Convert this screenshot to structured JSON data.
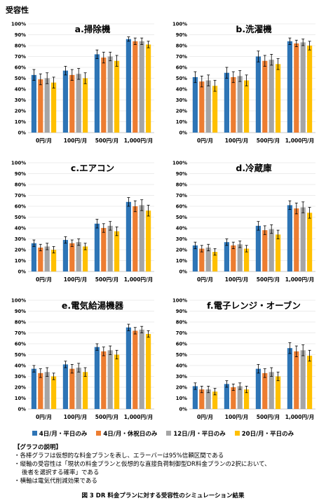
{
  "heading": "受容性",
  "colors": [
    "#2e75b6",
    "#ed7d31",
    "#a5a5a5",
    "#ffc000"
  ],
  "legend": [
    "4日/月・平日のみ",
    "4日/月・休祝日のみ",
    "12日/月・平日のみ",
    "20日/月・平日のみ"
  ],
  "notes": {
    "title": "【グラフの説明】",
    "line1": "・各棒グラフは仮想的な料金プランを表し、エラーバーは95%信頼区間である",
    "line2a": "・縦軸の受容性は「現状の料金プランと仮想的な直接負荷制御型DR料金プランの2択において、",
    "line2b": "後者を選択する確率」である",
    "line3": "・横軸は電気代削減効果である"
  },
  "caption": "図 3 DR 料金プランに対する受容性のシミュレーション結果",
  "chart_data": [
    {
      "type": "bar",
      "title": "a.掃除機",
      "categories": [
        "0円/月",
        "100円/月",
        "500円/月",
        "1,000円/月"
      ],
      "ylim": [
        0,
        100
      ],
      "yticks": [
        "0%",
        "10%",
        "20%",
        "30%",
        "40%",
        "50%",
        "60%",
        "70%",
        "80%",
        "90%",
        "100%"
      ],
      "series": [
        {
          "name": "4日/月・平日のみ",
          "values": [
            53,
            57,
            72,
            86
          ],
          "err": [
            5,
            4,
            4,
            2
          ]
        },
        {
          "name": "4日/月・休祝日のみ",
          "values": [
            49,
            53,
            69,
            84
          ],
          "err": [
            5,
            5,
            5,
            3
          ]
        },
        {
          "name": "12日/月・平日のみ",
          "values": [
            50,
            54,
            70,
            84
          ],
          "err": [
            5,
            5,
            4,
            3
          ]
        },
        {
          "name": "20日/月・平日のみ",
          "values": [
            46,
            50,
            66,
            81
          ],
          "err": [
            5,
            5,
            5,
            3
          ]
        }
      ]
    },
    {
      "type": "bar",
      "title": "b.洗濯機",
      "categories": [
        "0円/月",
        "100円/月",
        "500円/月",
        "1,000円/月"
      ],
      "ylim": [
        0,
        100
      ],
      "yticks": [
        "0%",
        "10%",
        "20%",
        "30%",
        "40%",
        "50%",
        "60%",
        "70%",
        "80%",
        "90%",
        "100%"
      ],
      "series": [
        {
          "name": "4日/月・平日のみ",
          "values": [
            51,
            55,
            70,
            84
          ],
          "err": [
            5,
            5,
            5,
            3
          ]
        },
        {
          "name": "4日/月・休祝日のみ",
          "values": [
            47,
            51,
            66,
            82
          ],
          "err": [
            5,
            5,
            5,
            3
          ]
        },
        {
          "name": "12日/月・平日のみ",
          "values": [
            48,
            52,
            67,
            83
          ],
          "err": [
            5,
            5,
            5,
            3
          ]
        },
        {
          "name": "20日/月・平日のみ",
          "values": [
            43,
            48,
            63,
            80
          ],
          "err": [
            5,
            5,
            5,
            4
          ]
        }
      ]
    },
    {
      "type": "bar",
      "title": "c.エアコン",
      "categories": [
        "0円/月",
        "100円/月",
        "500円/月",
        "1,000円/月"
      ],
      "ylim": [
        0,
        100
      ],
      "yticks": [
        "0%",
        "10%",
        "20%",
        "30%",
        "40%",
        "50%",
        "60%",
        "70%",
        "80%",
        "90%",
        "100%"
      ],
      "series": [
        {
          "name": "4日/月・平日のみ",
          "values": [
            26,
            29,
            44,
            64
          ],
          "err": [
            3,
            3,
            4,
            4
          ]
        },
        {
          "name": "4日/月・休祝日のみ",
          "values": [
            22,
            26,
            40,
            60
          ],
          "err": [
            3,
            3,
            4,
            5
          ]
        },
        {
          "name": "12日/月・平日のみ",
          "values": [
            23,
            27,
            42,
            61
          ],
          "err": [
            3,
            3,
            4,
            5
          ]
        },
        {
          "name": "20日/月・平日のみ",
          "values": [
            20,
            23,
            37,
            56
          ],
          "err": [
            3,
            3,
            4,
            5
          ]
        }
      ]
    },
    {
      "type": "bar",
      "title": "d.冷蔵庫",
      "categories": [
        "0円/月",
        "100円/月",
        "500円/月",
        "1,000円/月"
      ],
      "ylim": [
        0,
        100
      ],
      "yticks": [
        "0%",
        "10%",
        "20%",
        "30%",
        "40%",
        "50%",
        "60%",
        "70%",
        "80%",
        "90%",
        "100%"
      ],
      "series": [
        {
          "name": "4日/月・平日のみ",
          "values": [
            24,
            27,
            42,
            61
          ],
          "err": [
            3,
            3,
            4,
            4
          ]
        },
        {
          "name": "4日/月・休祝日のみ",
          "values": [
            21,
            24,
            38,
            58
          ],
          "err": [
            3,
            3,
            4,
            5
          ]
        },
        {
          "name": "12日/月・平日のみ",
          "values": [
            22,
            25,
            39,
            59
          ],
          "err": [
            3,
            3,
            4,
            5
          ]
        },
        {
          "name": "20日/月・平日のみ",
          "values": [
            18,
            21,
            34,
            54
          ],
          "err": [
            3,
            3,
            4,
            5
          ]
        }
      ]
    },
    {
      "type": "bar",
      "title": "e.電気給湯機器",
      "categories": [
        "0円/月",
        "100円/月",
        "500円/月",
        "1,000円/月"
      ],
      "ylim": [
        0,
        100
      ],
      "yticks": [
        "0%",
        "10%",
        "20%",
        "30%",
        "40%",
        "50%",
        "60%",
        "70%",
        "80%",
        "90%",
        "100%"
      ],
      "series": [
        {
          "name": "4日/月・平日のみ",
          "values": [
            37,
            41,
            57,
            75
          ],
          "err": [
            3,
            3,
            3,
            3
          ]
        },
        {
          "name": "4日/月・休祝日のみ",
          "values": [
            33,
            37,
            53,
            72
          ],
          "err": [
            4,
            4,
            4,
            3
          ]
        },
        {
          "name": "12日/月・平日のみ",
          "values": [
            34,
            38,
            54,
            73
          ],
          "err": [
            4,
            4,
            4,
            3
          ]
        },
        {
          "name": "20日/月・平日のみ",
          "values": [
            30,
            34,
            50,
            69
          ],
          "err": [
            3,
            4,
            4,
            3
          ]
        }
      ]
    },
    {
      "type": "bar",
      "title": "f.電子レンジ・オーブン",
      "categories": [
        "0円/月",
        "100円/月",
        "500円/月",
        "1,000円/月"
      ],
      "ylim": [
        0,
        100
      ],
      "yticks": [
        "0%",
        "10%",
        "20%",
        "30%",
        "40%",
        "50%",
        "60%",
        "70%",
        "80%",
        "90%",
        "100%"
      ],
      "series": [
        {
          "name": "4日/月・平日のみ",
          "values": [
            21,
            23,
            37,
            56
          ],
          "err": [
            3,
            3,
            4,
            5
          ]
        },
        {
          "name": "4日/月・休祝日のみ",
          "values": [
            18,
            20,
            33,
            53
          ],
          "err": [
            3,
            3,
            4,
            5
          ]
        },
        {
          "name": "12日/月・平日のみ",
          "values": [
            18,
            21,
            34,
            54
          ],
          "err": [
            3,
            3,
            4,
            5
          ]
        },
        {
          "name": "20日/月・平日のみ",
          "values": [
            16,
            18,
            30,
            49
          ],
          "err": [
            3,
            3,
            4,
            5
          ]
        }
      ]
    }
  ]
}
